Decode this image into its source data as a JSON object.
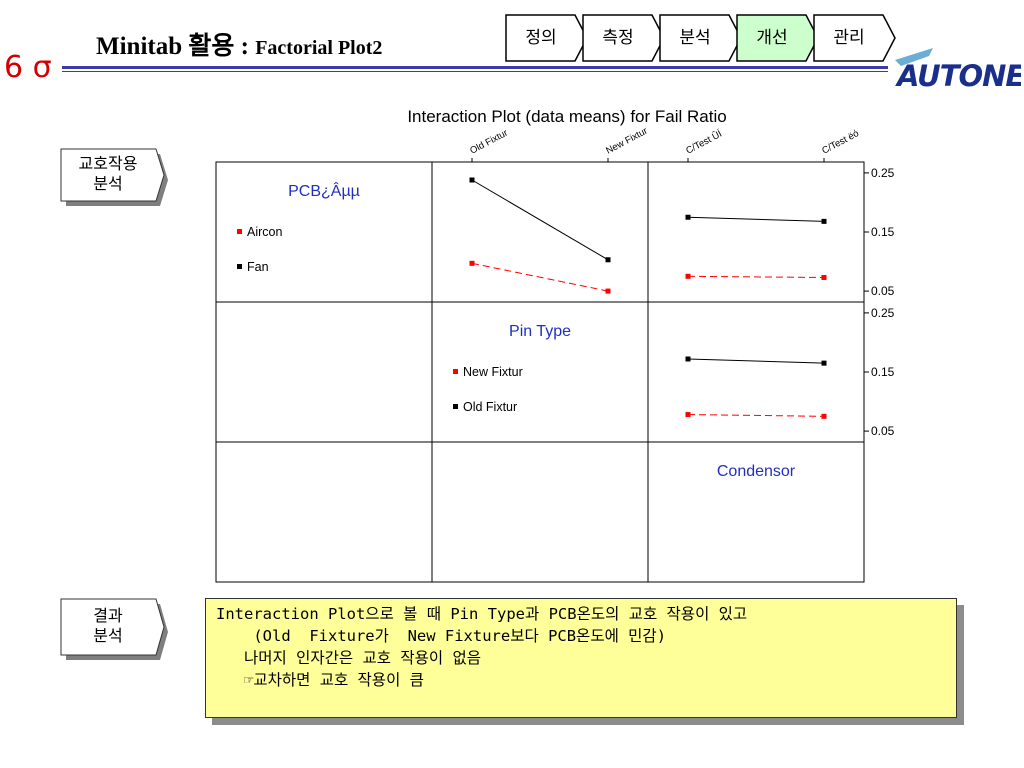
{
  "header": {
    "sigma": "6 σ",
    "title_main": "Minitab 활용 : ",
    "title_sub": "Factorial Plot2",
    "steps": [
      "정의",
      "측정",
      "분석",
      "개선",
      "관리"
    ],
    "active_step": "개선",
    "active_color": "#ccffcc",
    "logo_text": "AUTONET",
    "rule_color": "#3a3aa8"
  },
  "side_labels": {
    "interaction": [
      "교호작용",
      "분석"
    ],
    "result": [
      "결과",
      "분석"
    ]
  },
  "chart_data": {
    "type": "line",
    "title": "Interaction Plot (data means) for Fail Ratio",
    "factors": [
      "PCB¿Âµµ",
      "Pin Type",
      "Condensor"
    ],
    "top_axis_labels": [
      "Old Fixtur",
      "New Fixtur",
      "C/Test ÛÍ",
      "C/Test ëó"
    ],
    "y_ticks": [
      "0.25",
      "0.15",
      "0.05"
    ],
    "ylim": [
      0.04,
      0.26
    ],
    "legends": [
      {
        "factor": "PCB¿Âµµ",
        "entries": [
          {
            "name": "Aircon",
            "color": "#ff0000"
          },
          {
            "name": "Fan",
            "color": "#000000"
          }
        ]
      },
      {
        "factor": "Pin Type",
        "entries": [
          {
            "name": "New Fixtur",
            "color": "#ff0000"
          },
          {
            "name": "Old Fixtur",
            "color": "#000000"
          }
        ]
      }
    ],
    "panels": [
      {
        "row": "PCB¿Âµµ",
        "column": "Pin Type",
        "x": [
          "Old Fixtur",
          "New Fixtur"
        ],
        "series": [
          {
            "name": "Fan",
            "style": "solid",
            "color": "#000000",
            "values": [
              0.238,
              0.103
            ]
          },
          {
            "name": "Aircon",
            "style": "dashed",
            "color": "#ff0000",
            "values": [
              0.097,
              0.05
            ]
          }
        ]
      },
      {
        "row": "PCB¿Âµµ",
        "column": "Condensor",
        "x": [
          "C/Test ÛÍ",
          "C/Test ëó"
        ],
        "series": [
          {
            "name": "Fan",
            "style": "solid",
            "color": "#000000",
            "values": [
              0.175,
              0.168
            ]
          },
          {
            "name": "Aircon",
            "style": "dashed",
            "color": "#ff0000",
            "values": [
              0.075,
              0.073
            ]
          }
        ]
      },
      {
        "row": "Pin Type",
        "column": "Condensor",
        "x": [
          "C/Test ÛÍ",
          "C/Test ëó"
        ],
        "series": [
          {
            "name": "Old Fixtur",
            "style": "solid",
            "color": "#000000",
            "values": [
              0.172,
              0.165
            ]
          },
          {
            "name": "New Fixtur",
            "style": "dashed",
            "color": "#ff0000",
            "values": [
              0.078,
              0.075
            ]
          }
        ]
      }
    ]
  },
  "result": {
    "lines": [
      "Interaction Plot으로 볼 때 Pin Type과 PCB온도의 교호 작용이 있고",
      "    (Old  Fixture가  New Fixture보다 PCB온도에 민감)",
      "   나머지 인자간은 교호 작용이 없음",
      "   ☞교차하면 교호 작용이 큼"
    ]
  }
}
